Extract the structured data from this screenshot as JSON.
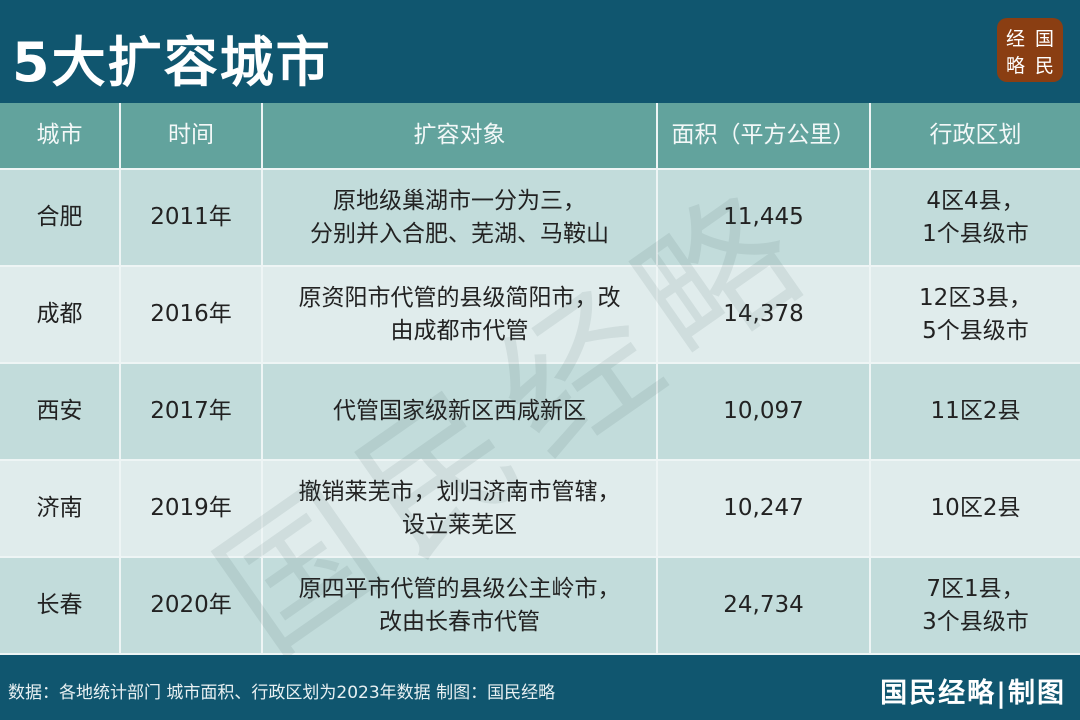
{
  "title": "5大扩容城市",
  "logo": [
    "经",
    "国",
    "略",
    "民"
  ],
  "logo_text": "国民经略",
  "watermark": "国民经略",
  "colors": {
    "background": "#10566f",
    "header": "#62a39d",
    "row_odd": "#c2dcdb",
    "row_even": "#e0ecec",
    "logo": "#8a3e12"
  },
  "table": {
    "headers": [
      "城市",
      "时间",
      "扩容对象",
      "面积（平方公里）",
      "行政区划"
    ],
    "rows": [
      {
        "city": "合肥",
        "time": "2011年",
        "target": "原地级巢湖市一分为三，\n分别并入合肥、芜湖、马鞍山",
        "area": "11,445",
        "division": "4区4县，\n1个县级市"
      },
      {
        "city": "成都",
        "time": "2016年",
        "target": "原资阳市代管的县级简阳市，改\n由成都市代管",
        "area": "14,378",
        "division": "12区3县，\n5个县级市"
      },
      {
        "city": "西安",
        "time": "2017年",
        "target": "代管国家级新区西咸新区",
        "area": "10,097",
        "division": "11区2县"
      },
      {
        "city": "济南",
        "time": "2019年",
        "target": "撤销莱芜市，划归济南市管辖，\n设立莱芜区",
        "area": "10,247",
        "division": "10区2县"
      },
      {
        "city": "长春",
        "time": "2020年",
        "target": "原四平市代管的县级公主岭市，\n改由长春市代管",
        "area": "24,734",
        "division": "7区1县，\n3个县级市"
      }
    ]
  },
  "footer": {
    "source": "数据：各地统计部门 城市面积、行政区划为2023年数据   制图：国民经略",
    "brand": "国民经略|制图"
  }
}
